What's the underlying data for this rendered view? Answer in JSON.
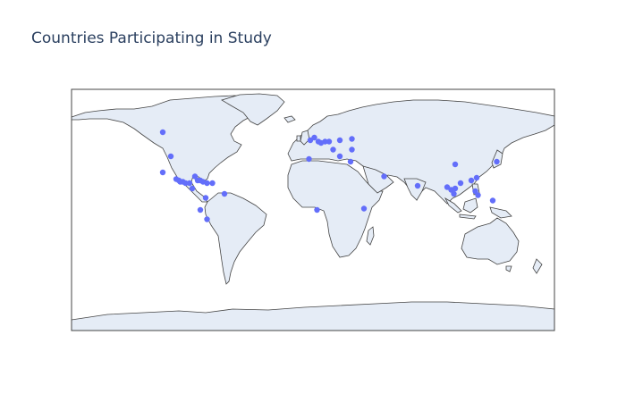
{
  "title": "Countries Participating in Study",
  "colors": {
    "land": "#e5ecf6",
    "coast": "#444444",
    "frame": "#444444",
    "ocean": "#ffffff",
    "marker": "#636efa"
  },
  "projection": "equirectangular",
  "markers": [
    {
      "lon": -112,
      "lat": 58
    },
    {
      "lon": -106,
      "lat": 40
    },
    {
      "lon": -112,
      "lat": 28
    },
    {
      "lon": -102,
      "lat": 23
    },
    {
      "lon": -100,
      "lat": 22
    },
    {
      "lon": -99,
      "lat": 21
    },
    {
      "lon": -97,
      "lat": 21
    },
    {
      "lon": -95,
      "lat": 20
    },
    {
      "lon": -92,
      "lat": 20
    },
    {
      "lon": -90,
      "lat": 16
    },
    {
      "lon": -88,
      "lat": 25
    },
    {
      "lon": -86,
      "lat": 22
    },
    {
      "lon": -84,
      "lat": 22
    },
    {
      "lon": -82,
      "lat": 21
    },
    {
      "lon": -79,
      "lat": 20
    },
    {
      "lon": -75,
      "lat": 20
    },
    {
      "lon": -66,
      "lat": 12
    },
    {
      "lon": -80,
      "lat": 9
    },
    {
      "lon": -84,
      "lat": 0
    },
    {
      "lon": -79,
      "lat": -7
    },
    {
      "lon": -2,
      "lat": 52
    },
    {
      "lon": 1,
      "lat": 54
    },
    {
      "lon": 4,
      "lat": 51
    },
    {
      "lon": 6,
      "lat": 50
    },
    {
      "lon": 9,
      "lat": 51
    },
    {
      "lon": 12,
      "lat": 51
    },
    {
      "lon": 15,
      "lat": 45
    },
    {
      "lon": 20,
      "lat": 52
    },
    {
      "lon": 29,
      "lat": 53
    },
    {
      "lon": 29,
      "lat": 45
    },
    {
      "lon": 20,
      "lat": 40
    },
    {
      "lon": 28,
      "lat": 36
    },
    {
      "lon": -3,
      "lat": 38
    },
    {
      "lon": 3,
      "lat": 0
    },
    {
      "lon": 38,
      "lat": 1
    },
    {
      "lon": 53,
      "lat": 25
    },
    {
      "lon": 78,
      "lat": 18
    },
    {
      "lon": 100,
      "lat": 17
    },
    {
      "lon": 103,
      "lat": 15
    },
    {
      "lon": 106,
      "lat": 16
    },
    {
      "lon": 110,
      "lat": 20
    },
    {
      "lon": 106,
      "lat": 34
    },
    {
      "lon": 105,
      "lat": 12
    },
    {
      "lon": 118,
      "lat": 22
    },
    {
      "lon": 122,
      "lat": 24
    },
    {
      "lon": 121,
      "lat": 14
    },
    {
      "lon": 123,
      "lat": 11
    },
    {
      "lon": 137,
      "lat": 36
    },
    {
      "lon": 134,
      "lat": 7
    }
  ]
}
